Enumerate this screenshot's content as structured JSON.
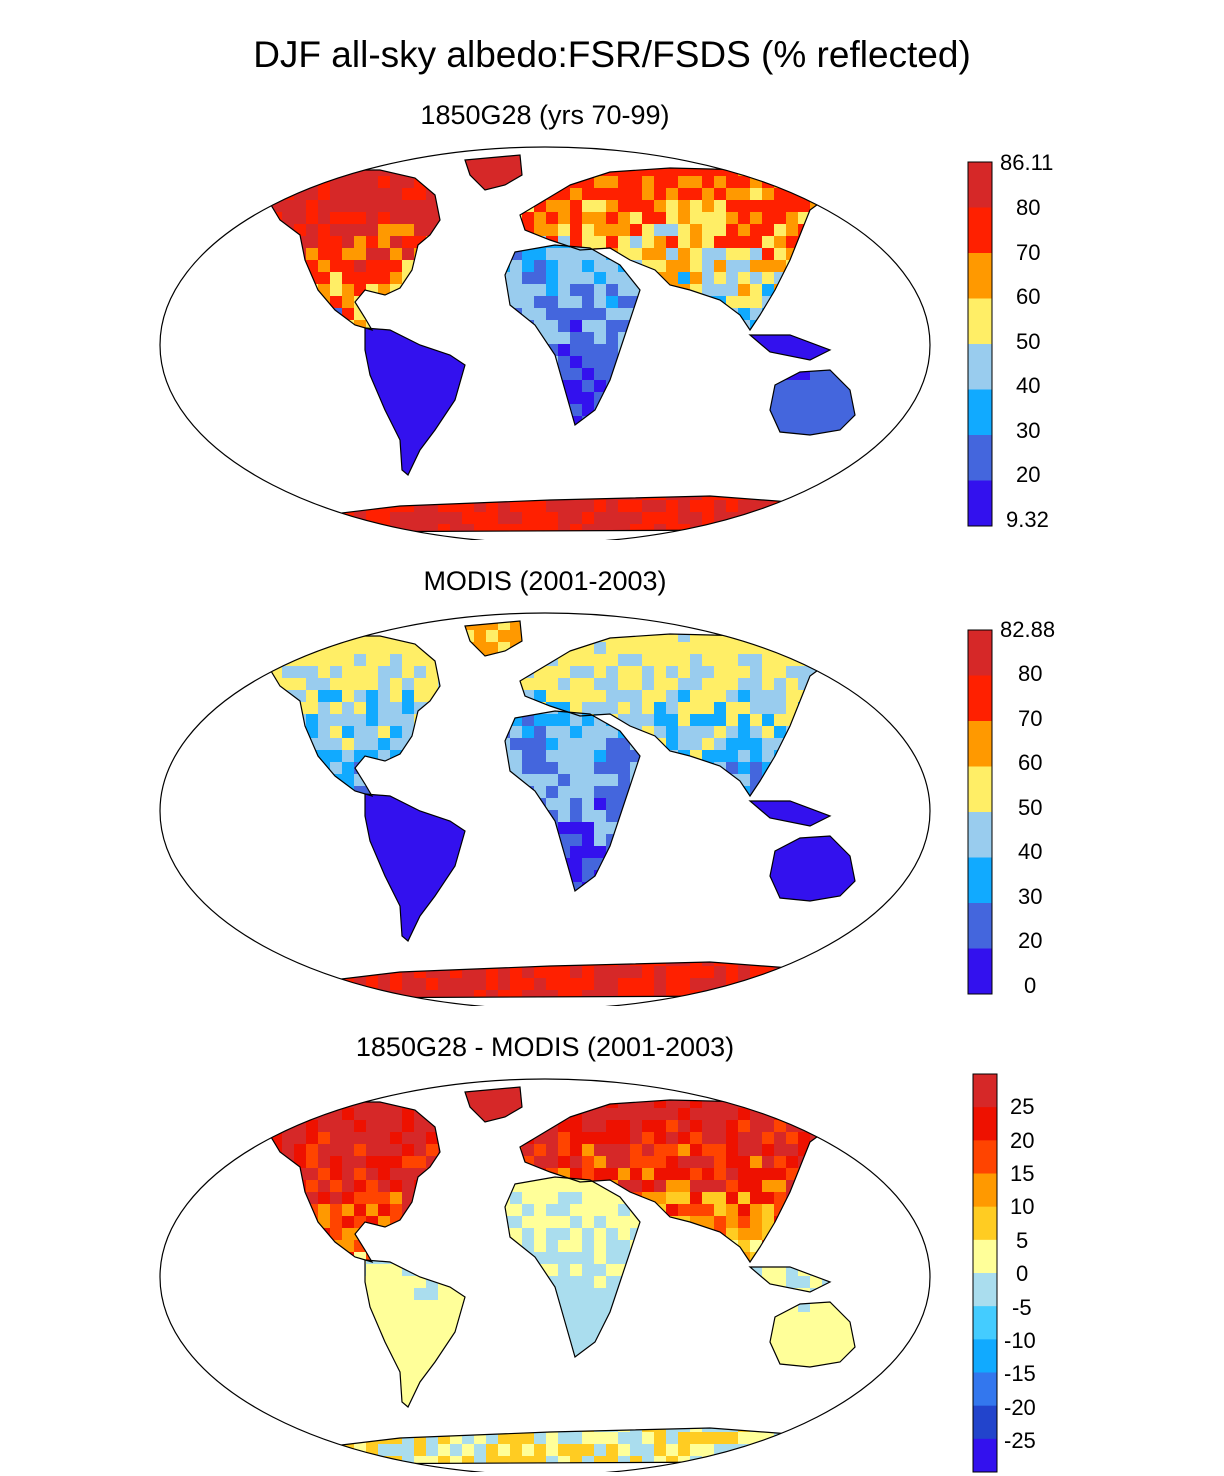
{
  "title": "DJF all-sky albedo:FSR/FSDS (% reflected)",
  "panels": [
    {
      "id": "model",
      "title": "1850G28 (yrs 70-99)",
      "colorbar": {
        "labels": [
          "86.11",
          "80",
          "70",
          "60",
          "50",
          "40",
          "30",
          "20",
          "9.32"
        ],
        "colors": [
          "#d62828",
          "#ff2000",
          "#ff9900",
          "#ffee66",
          "#99ccee",
          "#11aaff",
          "#4466dd",
          "#3311ee"
        ]
      }
    },
    {
      "id": "obs",
      "title": "MODIS (2001-2003)",
      "colorbar": {
        "labels": [
          "82.88",
          "80",
          "70",
          "60",
          "50",
          "40",
          "30",
          "20",
          "0"
        ],
        "colors": [
          "#d62828",
          "#ff2000",
          "#ff9900",
          "#ffee66",
          "#99ccee",
          "#11aaff",
          "#4466dd",
          "#3311ee"
        ]
      }
    },
    {
      "id": "diff",
      "title": "1850G28 - MODIS (2001-2003)",
      "colorbar": {
        "labels": [
          "25",
          "20",
          "15",
          "10",
          "5",
          "0",
          "-5",
          "-10",
          "-15",
          "-20",
          "-25"
        ],
        "colors": [
          "#d62828",
          "#ee1100",
          "#ff4400",
          "#ff9900",
          "#ffcc22",
          "#ffff99",
          "#aaddee",
          "#44ccff",
          "#11aaff",
          "#3377ee",
          "#2244cc",
          "#3311ee"
        ]
      }
    }
  ]
}
